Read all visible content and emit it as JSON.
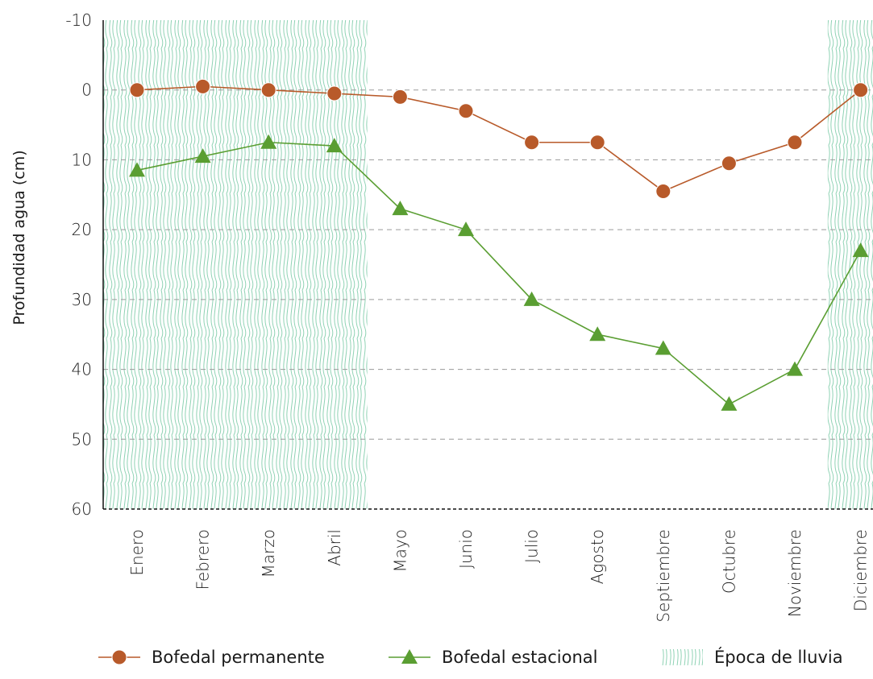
{
  "chart_data": {
    "type": "line",
    "ylabel": "Profundidad agua (cm)",
    "xlabel": "",
    "categories": [
      "Enero",
      "Febrero",
      "Marzo",
      "Abril",
      "Mayo",
      "Junio",
      "Julio",
      "Agosto",
      "Septiembre",
      "Octubre",
      "Noviembre",
      "Diciembre"
    ],
    "ylim": [
      -10,
      60
    ],
    "y_inverted": true,
    "yticks": [
      "-10",
      "0",
      "10",
      "20",
      "30",
      "40",
      "50",
      "60"
    ],
    "grid": "horizontal-dashed",
    "series": [
      {
        "name": "Bofedal permanente",
        "marker": "circle",
        "color": "#b85a2a",
        "values": [
          0,
          -0.5,
          0,
          0.5,
          1,
          3,
          7.5,
          7.5,
          14.5,
          10.5,
          7.5,
          0
        ]
      },
      {
        "name": "Bofedal estacional",
        "marker": "triangle",
        "color": "#5a9e32",
        "values": [
          11.5,
          9.5,
          7.5,
          8,
          17,
          20,
          30,
          35,
          37,
          45,
          40,
          23
        ]
      }
    ],
    "shaded_regions": {
      "name": "Época de lluvia",
      "color": "#7ec8a8",
      "ranges": [
        [
          "Enero",
          "Abril"
        ],
        [
          "Diciembre",
          "Diciembre"
        ]
      ]
    },
    "legend_position": "bottom"
  }
}
